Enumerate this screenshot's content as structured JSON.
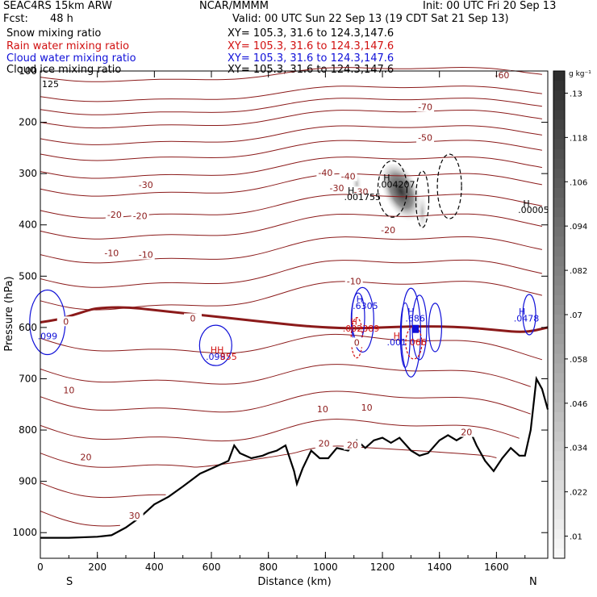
{
  "header": {
    "model": "SEAC4RS 15km ARW",
    "center": "NCAR/MMMM",
    "init": "Init: 00 UTC Fri 20 Sep 13",
    "fcst_label": "Fcst:",
    "fcst_value": "48 h",
    "valid": "Valid: 00 UTC Sun 22 Sep 13 (19 CDT Sat 21 Sep 13)"
  },
  "legend": [
    {
      "label": "Snow mixing ratio",
      "xy": "XY= 105.3, 31.6 to 124.3,147.6",
      "color": "#000000"
    },
    {
      "label": "Rain water mixing ratio",
      "xy": "XY= 105.3, 31.6 to 124.3,147.6",
      "color": "#d11010"
    },
    {
      "label": "Cloud water mixing ratio",
      "xy": "XY= 105.3, 31.6 to 124.3,147.6",
      "color": "#1010d8"
    },
    {
      "label": "Cloud ice mixing ratio",
      "xy": "XY= 105.3, 31.6 to 124.3,147.6",
      "color": "#000000"
    }
  ],
  "chart_data": {
    "type": "heatmap",
    "xlabel": "Distance (km)",
    "ylabel": "Pressure (hPa)",
    "xlim": [
      0,
      1780
    ],
    "ylim": [
      1050,
      100
    ],
    "x_ticks": [
      0,
      200,
      400,
      600,
      800,
      1000,
      1200,
      1400,
      1600
    ],
    "y_ticks": [
      100,
      200,
      300,
      400,
      500,
      600,
      700,
      800,
      900,
      1000
    ],
    "y_extra_tick_label": "125",
    "direction_start": "S",
    "direction_end": "N",
    "colorbar": {
      "unit": "g kg⁻¹",
      "ticks": [
        ".13",
        ".118",
        ".106",
        ".094",
        ".082",
        ".07",
        ".058",
        ".046",
        ".034",
        ".022",
        ".01"
      ],
      "tick_values": [
        0.13,
        0.118,
        0.106,
        0.094,
        0.082,
        0.07,
        0.058,
        0.046,
        0.034,
        0.022,
        0.01
      ]
    },
    "temperature_labels": [
      {
        "text": "-70",
        "x": 1350,
        "p": 170
      },
      {
        "text": "-60",
        "x": 1620,
        "p": 108
      },
      {
        "text": "-50",
        "x": 1350,
        "p": 230
      },
      {
        "text": "-40",
        "x": 1000,
        "p": 298
      },
      {
        "text": "-40",
        "x": 1080,
        "p": 305
      },
      {
        "text": "-30",
        "x": 370,
        "p": 322
      },
      {
        "text": "-30",
        "x": 1040,
        "p": 328
      },
      {
        "text": "-30",
        "x": 1125,
        "p": 335
      },
      {
        "text": "-20",
        "x": 260,
        "p": 380
      },
      {
        "text": "-20",
        "x": 350,
        "p": 382
      },
      {
        "text": "-20",
        "x": 1220,
        "p": 410
      },
      {
        "text": "-10",
        "x": 250,
        "p": 455
      },
      {
        "text": "-10",
        "x": 370,
        "p": 458
      },
      {
        "text": "-10",
        "x": 1100,
        "p": 510
      },
      {
        "text": "0",
        "x": 90,
        "p": 588
      },
      {
        "text": "0",
        "x": 535,
        "p": 582
      },
      {
        "text": "0",
        "x": 1110,
        "p": 629
      },
      {
        "text": "10",
        "x": 100,
        "p": 722
      },
      {
        "text": "10",
        "x": 990,
        "p": 759
      },
      {
        "text": "10",
        "x": 1145,
        "p": 756
      },
      {
        "text": "20",
        "x": 160,
        "p": 853
      },
      {
        "text": "20",
        "x": 995,
        "p": 826
      },
      {
        "text": "20",
        "x": 1095,
        "p": 829
      },
      {
        "text": "20",
        "x": 1495,
        "p": 804
      },
      {
        "text": "30",
        "x": 330,
        "p": 967
      }
    ],
    "extrema_labels": [
      {
        "text": "H",
        "x": 1215,
        "p": 314,
        "color": "#000000"
      },
      {
        "text": ".004207",
        "x": 1250,
        "p": 327,
        "color": "#000000"
      },
      {
        "text": "H",
        "x": 1090,
        "p": 339,
        "color": "#000000"
      },
      {
        "text": ".001755",
        "x": 1130,
        "p": 352,
        "color": "#000000"
      },
      {
        "text": "H",
        "x": 1705,
        "p": 364,
        "color": "#000000"
      },
      {
        "text": ".00005",
        "x": 1730,
        "p": 377,
        "color": "#000000"
      },
      {
        "text": "H",
        "x": 1120,
        "p": 551,
        "color": "#1010d8"
      },
      {
        "text": ".6305",
        "x": 1140,
        "p": 564,
        "color": "#1010d8"
      },
      {
        "text": "H",
        "x": 1300,
        "p": 575,
        "color": "#1010d8"
      },
      {
        "text": ".686",
        "x": 1315,
        "p": 588,
        "color": "#1010d8"
      },
      {
        "text": "H",
        "x": 1690,
        "p": 575,
        "color": "#1010d8"
      },
      {
        "text": ".0478",
        "x": 1705,
        "p": 588,
        "color": "#1010d8"
      },
      {
        "text": "H",
        "x": 1100,
        "p": 595,
        "color": "#d11010"
      },
      {
        "text": ".002389",
        "x": 1125,
        "p": 608,
        "color": "#d11010"
      },
      {
        "text": "H",
        "x": 1250,
        "p": 622,
        "color": "#d11010"
      },
      {
        "text": ".001",
        "x": 1250,
        "p": 635,
        "color": "#1010d8"
      },
      {
        "text": "066",
        "x": 1325,
        "p": 635,
        "color": "#d11010"
      },
      {
        "text": "HH",
        "x": 620,
        "p": 650,
        "color": "#d11010"
      },
      {
        "text": ".099",
        "x": 615,
        "p": 663,
        "color": "#1010d8"
      },
      {
        "text": "855",
        "x": 660,
        "p": 663,
        "color": "#d11010"
      },
      {
        "text": ".099",
        "x": 25,
        "p": 623,
        "color": "#1010d8"
      }
    ],
    "terrain": {
      "x": [
        0,
        100,
        200,
        250,
        300,
        350,
        400,
        450,
        500,
        560,
        620,
        660,
        680,
        700,
        740,
        780,
        800,
        830,
        860,
        890,
        900,
        920,
        950,
        980,
        1010,
        1040,
        1080,
        1110,
        1140,
        1170,
        1200,
        1230,
        1260,
        1300,
        1330,
        1360,
        1400,
        1430,
        1460,
        1490,
        1510,
        1530,
        1560,
        1590,
        1620,
        1650,
        1680,
        1700,
        1720,
        1740,
        1760,
        1780
      ],
      "p": [
        1010,
        1010,
        1008,
        1005,
        990,
        970,
        945,
        930,
        910,
        885,
        870,
        860,
        830,
        845,
        855,
        850,
        845,
        840,
        830,
        880,
        905,
        875,
        840,
        855,
        855,
        835,
        840,
        820,
        835,
        820,
        815,
        825,
        815,
        840,
        850,
        845,
        820,
        810,
        820,
        810,
        805,
        830,
        860,
        880,
        855,
        835,
        850,
        850,
        800,
        700,
        720,
        760
      ]
    },
    "freezing_level": {
      "x": [
        0,
        60,
        120,
        160,
        200,
        300,
        400,
        500,
        600,
        700,
        800,
        900,
        1000,
        1100,
        1200,
        1300,
        1400,
        1500,
        1600,
        1700,
        1780
      ],
      "p": [
        590,
        585,
        575,
        568,
        562,
        560,
        566,
        572,
        578,
        584,
        590,
        596,
        600,
        602,
        600,
        598,
        598,
        600,
        605,
        610,
        600
      ]
    }
  }
}
